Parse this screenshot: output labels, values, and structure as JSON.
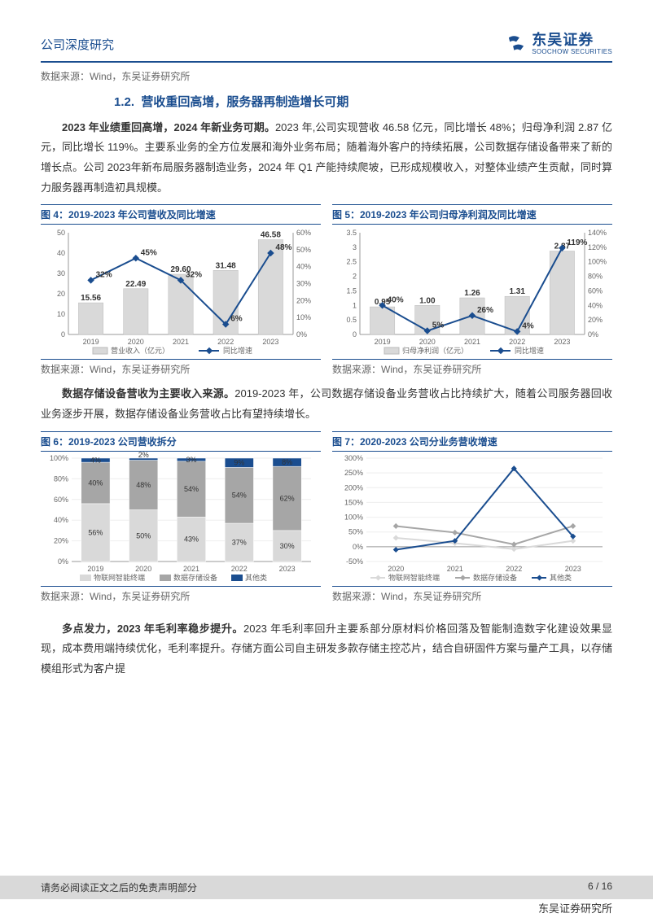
{
  "header": {
    "title": "公司深度研究"
  },
  "logo": {
    "cn": "东吴证券",
    "en": "SOOCHOW SECURITIES"
  },
  "source_text": "数据来源：Wind，东吴证券研究所",
  "section": {
    "num": "1.2.",
    "title": "营收重回高增，服务器再制造增长可期"
  },
  "para1_bold": "2023 年业绩重回高增，2024 年新业务可期。",
  "para1_rest": "2023 年,公司实现营收 46.58 亿元，同比增长 48%；归母净利润 2.87 亿元，同比增长 119%。主要系业务的全方位发展和海外业务布局；随着海外客户的持续拓展，公司数据存储设备带来了新的增长点。公司 2023年新布局服务器制造业务，2024 年 Q1 产能持续爬坡，已形成规模收入，对整体业绩产生贡献，同时算力服务器再制造初具规模。",
  "para2_bold": "数据存储设备营收为主要收入来源。",
  "para2_rest": "2019-2023 年，公司数据存储设备业务营收占比持续扩大，随着公司服务器回收业务逐步开展，数据存储设备业务营收占比有望持续增长。",
  "para3_bold": "多点发力，2023 年毛利率稳步提升。",
  "para3_rest": "2023 年毛利率回升主要系部分原材料价格回落及智能制造数字化建设效果显现，成本费用端持续优化，毛利率提升。存储方面公司自主研发多款存储主控芯片，结合自研固件方案与量产工具，以存储模组形式为客户提",
  "chart4": {
    "title": "图 4：2019-2023 年公司营收及同比增速",
    "categories": [
      "2019",
      "2020",
      "2021",
      "2022",
      "2023"
    ],
    "bar_values": [
      15.56,
      22.49,
      29.6,
      31.48,
      46.58
    ],
    "bar_labels": [
      "15.56",
      "22.49",
      "29.60",
      "31.48",
      "46.58"
    ],
    "line_values": [
      32,
      45,
      32,
      6,
      48
    ],
    "line_labels": [
      "32%",
      "45%",
      "32%",
      "6%",
      "48%"
    ],
    "y1_max": 50,
    "y1_step": 10,
    "y2_max": 60,
    "y2_step": 10,
    "bar_color": "#d9d9d9",
    "line_color": "#1a4d8f",
    "legend": [
      "营业收入（亿元）",
      "同比增速"
    ]
  },
  "chart5": {
    "title": "图 5：2019-2023 年公司归母净利润及同比增速",
    "categories": [
      "2019",
      "2020",
      "2021",
      "2022",
      "2023"
    ],
    "bar_values": [
      0.95,
      1.0,
      1.26,
      1.31,
      2.87
    ],
    "bar_labels": [
      "0.95",
      "1.00",
      "1.26",
      "1.31",
      "2.87"
    ],
    "line_values": [
      40,
      5,
      26,
      4,
      119
    ],
    "line_labels": [
      "40%",
      "5%",
      "26%",
      "4%",
      "119%"
    ],
    "y1_max": 3.5,
    "y1_step": 0.5,
    "y2_max": 140,
    "y2_step": 20,
    "bar_color": "#d9d9d9",
    "line_color": "#1a4d8f",
    "legend": [
      "归母净利润（亿元）",
      "同比增速"
    ]
  },
  "chart6": {
    "title": "图 6：2019-2023 公司营收拆分",
    "categories": [
      "2019",
      "2020",
      "2021",
      "2022",
      "2023"
    ],
    "series": [
      {
        "name": "物联网智能终端",
        "color": "#d9d9d9",
        "values": [
          56,
          50,
          43,
          37,
          30
        ],
        "labels": [
          "56%",
          "50%",
          "43%",
          "37%",
          "30%"
        ]
      },
      {
        "name": "数据存储设备",
        "color": "#a6a6a6",
        "values": [
          40,
          48,
          54,
          54,
          62
        ],
        "labels": [
          "40%",
          "48%",
          "54%",
          "54%",
          "62%"
        ]
      },
      {
        "name": "其他类",
        "color": "#1a4d8f",
        "values": [
          4,
          2,
          3,
          9,
          8
        ],
        "labels": [
          "4%",
          "2%",
          "3%",
          "9%",
          "8%"
        ]
      }
    ],
    "y_ticks": [
      "0%",
      "20%",
      "40%",
      "60%",
      "80%",
      "100%"
    ]
  },
  "chart7": {
    "title": "图 7：2020-2023 公司分业务营收增速",
    "categories": [
      "2020",
      "2021",
      "2022",
      "2023"
    ],
    "series": [
      {
        "name": "物联网智能终端",
        "color": "#d9d9d9",
        "values": [
          30,
          12,
          -8,
          20
        ]
      },
      {
        "name": "数据存储设备",
        "color": "#a6a6a6",
        "values": [
          70,
          48,
          8,
          70
        ]
      },
      {
        "name": "其他类",
        "color": "#1a4d8f",
        "values": [
          -10,
          20,
          265,
          35
        ]
      }
    ],
    "y_ticks": [
      "-50%",
      "0%",
      "50%",
      "100%",
      "150%",
      "200%",
      "250%",
      "300%"
    ]
  },
  "footer": {
    "disclaimer": "请务必阅读正文之后的免责声明部分",
    "page": "6 / 16",
    "org": "东吴证券研究所"
  }
}
